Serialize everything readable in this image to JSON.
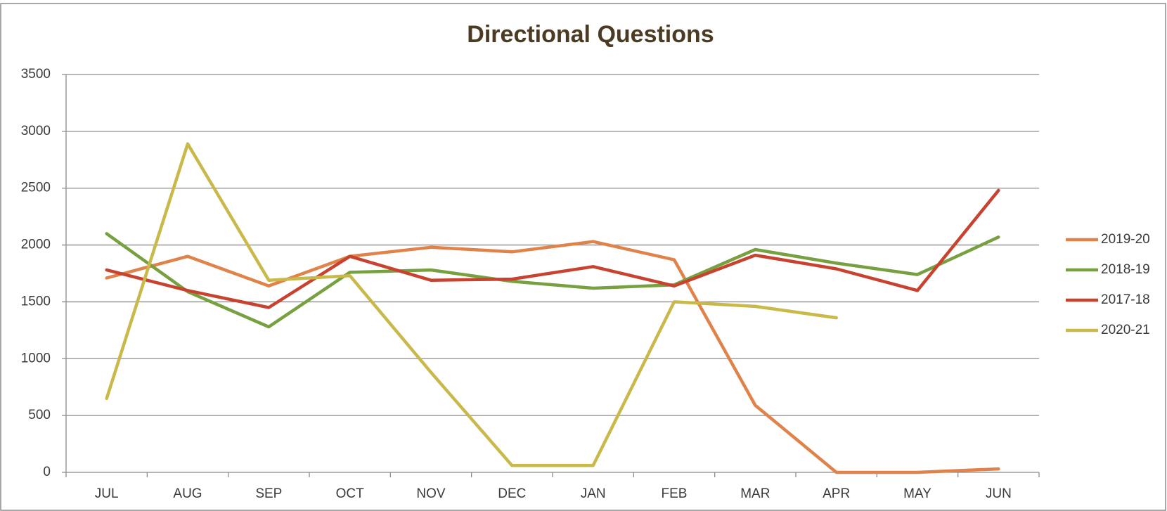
{
  "chart_data": {
    "type": "line",
    "title": "Directional Questions",
    "categories": [
      "JUL",
      "AUG",
      "SEP",
      "OCT",
      "NOV",
      "DEC",
      "JAN",
      "FEB",
      "MAR",
      "APR",
      "MAY",
      "JUN"
    ],
    "series": [
      {
        "name": "2019-20",
        "color": "#e0834a",
        "values": [
          1710,
          1900,
          1640,
          1900,
          1980,
          1940,
          2030,
          1870,
          590,
          0,
          0,
          30
        ]
      },
      {
        "name": "2018-19",
        "color": "#77a040",
        "values": [
          2100,
          1590,
          1280,
          1760,
          1780,
          1680,
          1620,
          1650,
          1960,
          1840,
          1740,
          2070
        ]
      },
      {
        "name": "2017-18",
        "color": "#c8432f",
        "values": [
          1780,
          1600,
          1450,
          1900,
          1690,
          1700,
          1810,
          1640,
          1910,
          1790,
          1600,
          2480
        ]
      },
      {
        "name": "2020-21",
        "color": "#c9b84a",
        "values": [
          650,
          2890,
          1690,
          1730,
          880,
          60,
          60,
          1500,
          1460,
          1360,
          null,
          null
        ]
      }
    ],
    "ylim": [
      0,
      3500
    ],
    "yticks": [
      0,
      500,
      1000,
      1500,
      2000,
      2500,
      3000,
      3500
    ],
    "grid": true,
    "legend": "right"
  }
}
